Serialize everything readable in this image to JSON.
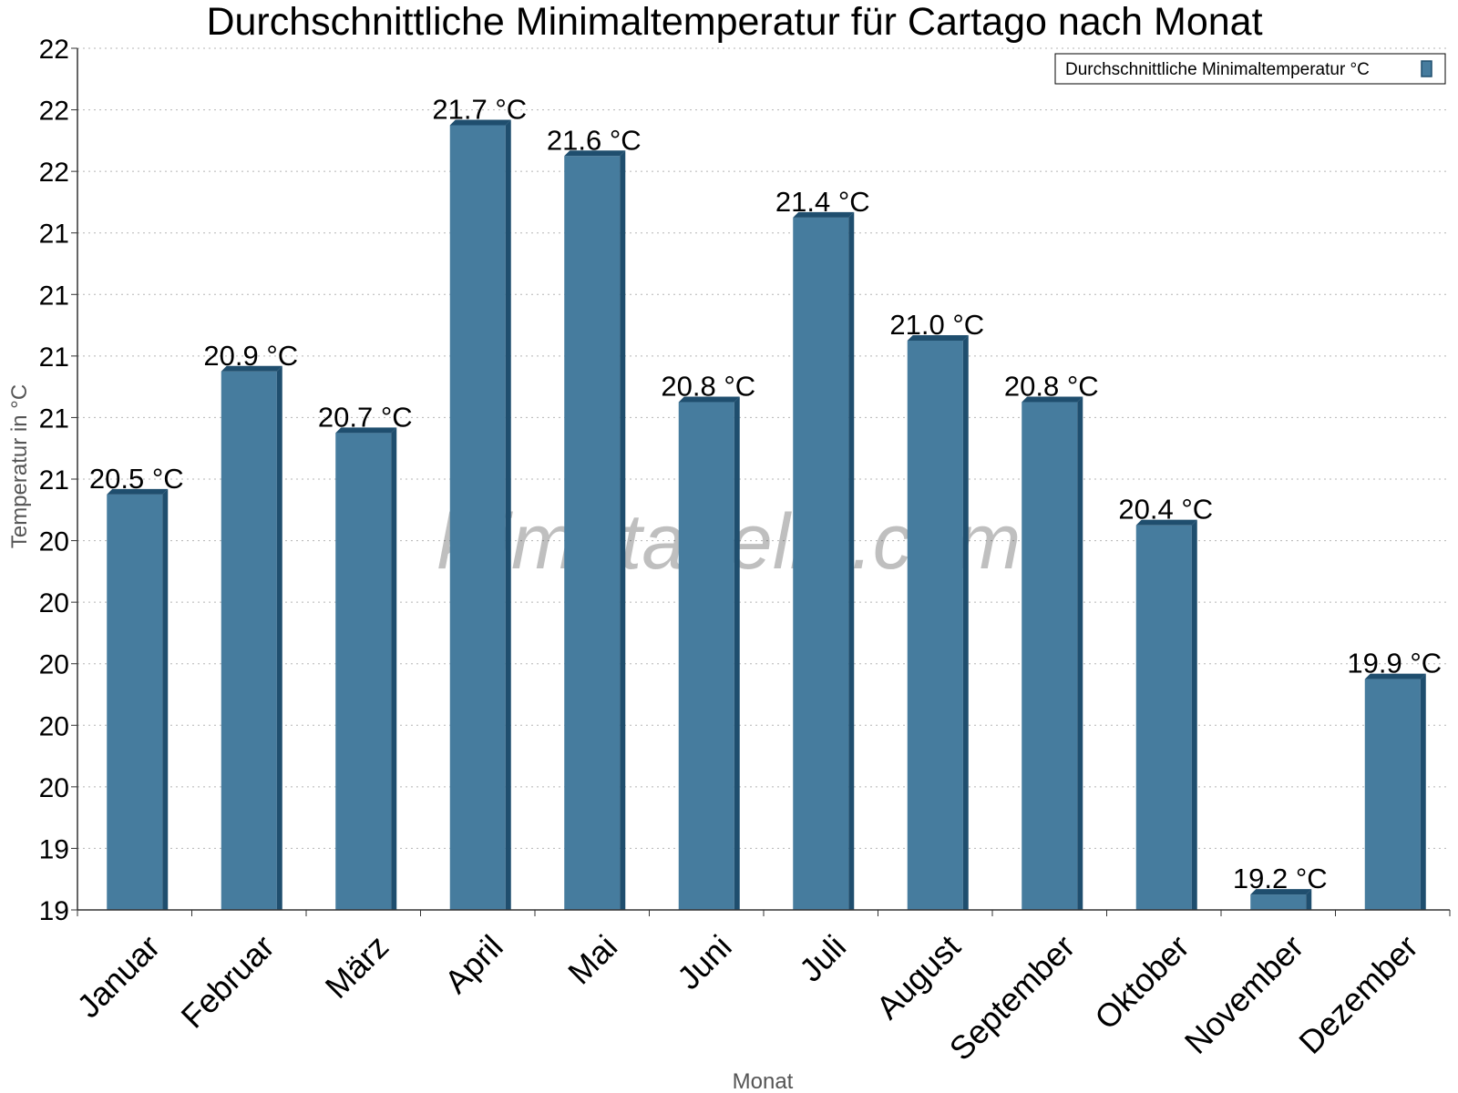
{
  "chart_data": {
    "type": "bar",
    "title": "Durchschnittliche Minimaltemperatur für Cartago nach Monat",
    "xlabel": "Monat",
    "ylabel": "Temperatur in °C",
    "categories": [
      "Januar",
      "Februar",
      "März",
      "April",
      "Mai",
      "Juni",
      "Juli",
      "August",
      "September",
      "Oktober",
      "November",
      "Dezember"
    ],
    "series": [
      {
        "name": "Durchschnittliche Minimaltemperatur °C",
        "values": [
          20.5,
          20.9,
          20.7,
          21.7,
          21.6,
          20.8,
          21.4,
          21.0,
          20.8,
          20.4,
          19.2,
          19.9
        ],
        "labels": [
          "20.5 °C",
          "20.9 °C",
          "20.7 °C",
          "21.7 °C",
          "21.6 °C",
          "20.8 °C",
          "21.4 °C",
          "21.0 °C",
          "20.8 °C",
          "20.4 °C",
          "19.2 °C",
          "19.9 °C"
        ]
      }
    ],
    "ylim": [
      19.15,
      21.95
    ],
    "yticks": [
      19.15,
      19.35,
      19.55,
      19.75,
      19.95,
      20.15,
      20.35,
      20.55,
      20.75,
      20.95,
      21.15,
      21.35,
      21.55,
      21.75,
      21.95
    ],
    "ytick_labels": [
      "19",
      "19",
      "20",
      "20",
      "20",
      "20",
      "20",
      "21",
      "21",
      "21",
      "21",
      "21",
      "22",
      "22",
      "22"
    ],
    "grid": true,
    "legend_position": "top-right",
    "bar_color": "#467c9e",
    "bar_edge_color": "#1f4e6e",
    "watermark": "klimatabelle.com"
  }
}
